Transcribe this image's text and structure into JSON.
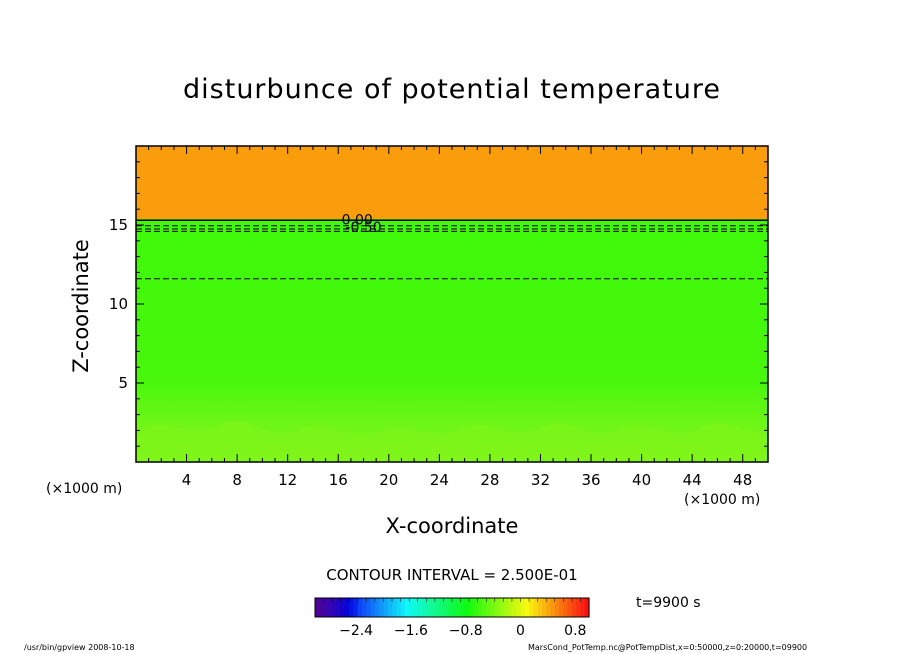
{
  "title": "disturbunce of potential temperature",
  "xlabel": "X-coordinate",
  "ylabel": "Z-coordinate",
  "x_unit_left": "(×1000 m)",
  "x_unit_right": "(×1000 m)",
  "contour_interval": "CONTOUR INTERVAL = 2.500E-01",
  "time_label": "t=9900 s",
  "footer_left": "/usr/bin/gpview   2008-10-18",
  "footer_right": "MarsCond_PotTemp.nc@PotTempDist,x=0:50000,z=0:20000,t=09900",
  "colors": {
    "upper_layer": "#f99d0d",
    "mid_layer": "#3ef80a",
    "lower_layer": "#7cf518",
    "axis": "#000000"
  },
  "chart_data": {
    "type": "heatmap",
    "title": "disturbunce of potential temperature",
    "xlabel": "X-coordinate",
    "ylabel": "Z-coordinate",
    "xlim": [
      0,
      50
    ],
    "ylim": [
      0,
      20
    ],
    "x_ticks": [
      4,
      8,
      12,
      16,
      20,
      24,
      28,
      32,
      36,
      40,
      44,
      48
    ],
    "y_ticks": [
      5,
      10,
      15
    ],
    "contour_interval": 0.25,
    "contour_labels": [
      {
        "text": "0.00",
        "x": 17.5,
        "y": 15.3
      },
      {
        "text": "-0.50",
        "x": 18.0,
        "y": 14.8
      }
    ],
    "dashed_contours_z": [
      11.6,
      14.6,
      14.75,
      14.95
    ],
    "solid_contours_z": [
      15.3
    ],
    "layers": [
      {
        "z_from": 15.3,
        "z_to": 20,
        "value": 0.75
      },
      {
        "z_from": 5,
        "z_to": 15.3,
        "value": -0.75
      },
      {
        "z_from": 0,
        "z_to": 5,
        "value": -0.5
      }
    ],
    "colorbar": {
      "ticks": [
        "-2.4",
        "-1.6",
        "-0.8",
        "0",
        "0.8"
      ],
      "range": [
        -3.0,
        1.0
      ]
    }
  }
}
